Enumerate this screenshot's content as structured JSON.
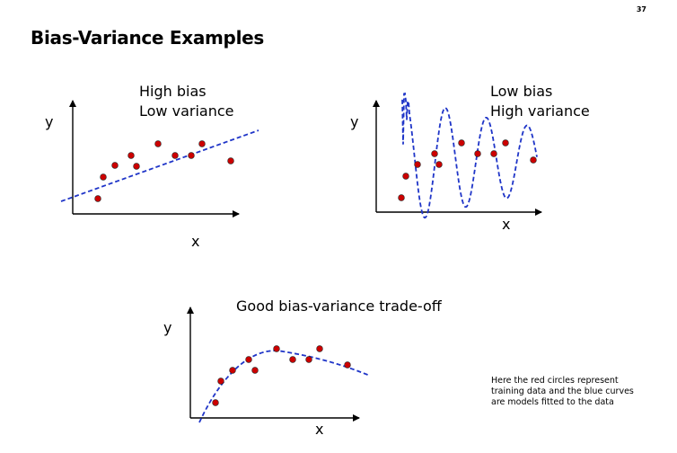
{
  "slide": {
    "number": "37",
    "title": "Bias-Variance Examples"
  },
  "panels": [
    {
      "id": "underfit",
      "label_lines": [
        "High bias",
        "Low variance"
      ],
      "y_label": "y",
      "x_label": "x",
      "curve": "linear"
    },
    {
      "id": "overfit",
      "label_lines": [
        "Low bias",
        "High variance"
      ],
      "y_label": "y",
      "x_label": "x",
      "curve": "oscillating"
    },
    {
      "id": "balanced",
      "label_lines": [
        "Good bias-variance trade-off"
      ],
      "y_label": "y",
      "x_label": "x",
      "curve": "smooth"
    }
  ],
  "note_lines": [
    "Here the red circles represent",
    "training data and the blue curves",
    "are models fitted to the data"
  ],
  "colors": {
    "point_fill": "#cc0000",
    "point_stroke": "#222222",
    "curve": "#1f35c8",
    "axis": "#000000"
  }
}
